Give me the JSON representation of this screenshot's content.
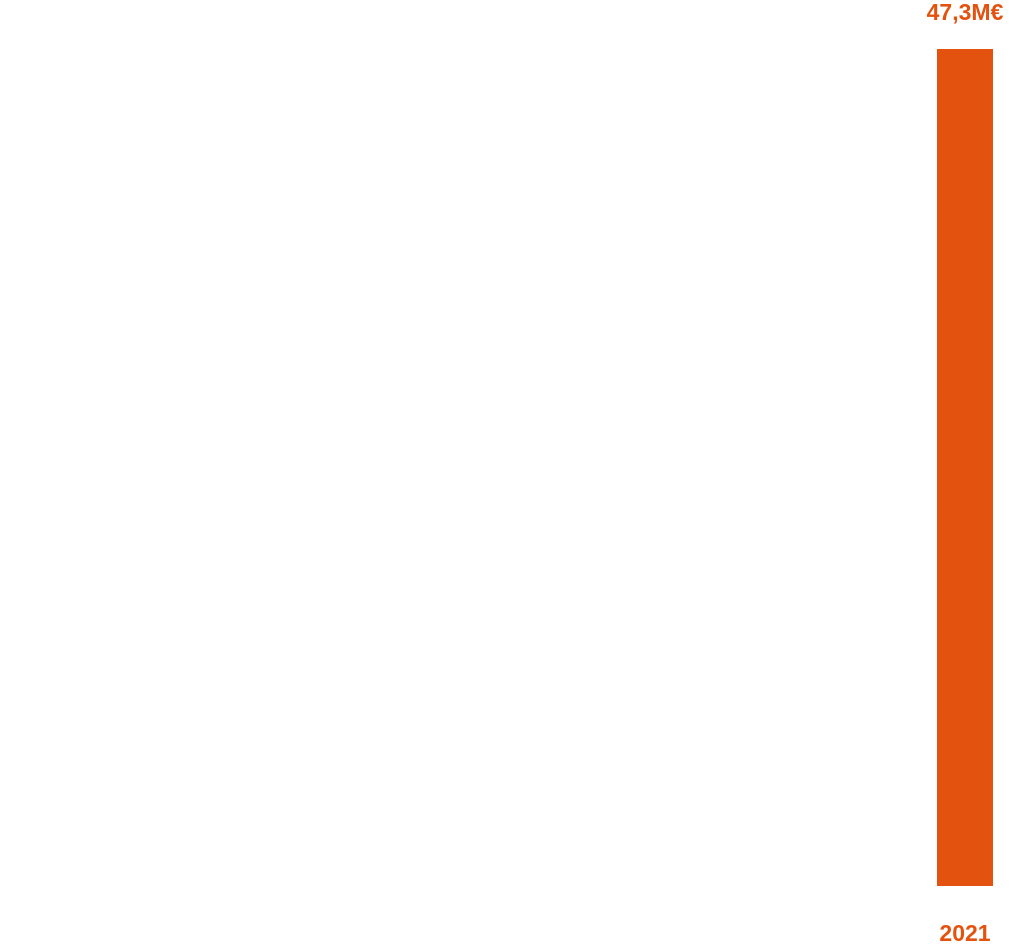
{
  "chart_data": {
    "type": "bar",
    "categories": [
      "2021"
    ],
    "values": [
      47.3
    ],
    "value_labels": [
      "47,3M€"
    ],
    "color": "#e3520f"
  }
}
